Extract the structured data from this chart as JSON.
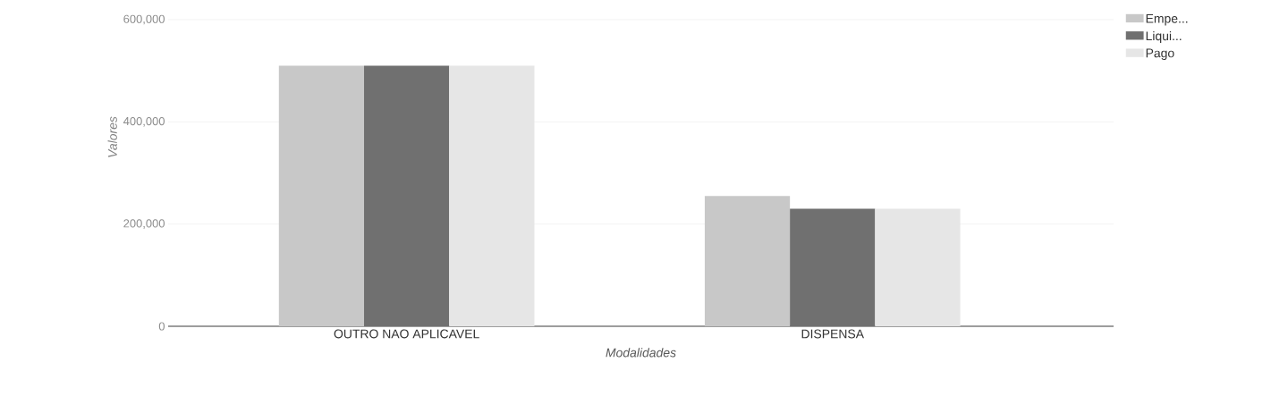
{
  "chart_data": {
    "type": "bar",
    "xlabel": "Modalidades",
    "ylabel": "Valores",
    "categories": [
      "OUTRO NAO APLICAVEL",
      "DISPENSA"
    ],
    "series": [
      {
        "name": "Empe...",
        "color": "#c8c8c8",
        "values": [
          510000,
          255000
        ]
      },
      {
        "name": "Liqui...",
        "color": "#707070",
        "values": [
          510000,
          230000
        ]
      },
      {
        "name": "Pago",
        "color": "#e6e6e6",
        "values": [
          510000,
          230000
        ]
      }
    ],
    "ylim": [
      0,
      600000
    ],
    "yticks": [
      0,
      {
        "value": 200000,
        "label": "200,000"
      },
      {
        "value": 400000,
        "label": "400,000"
      },
      {
        "value": 600000,
        "label": "600,000"
      }
    ],
    "grid": "y",
    "legend": "top right"
  }
}
